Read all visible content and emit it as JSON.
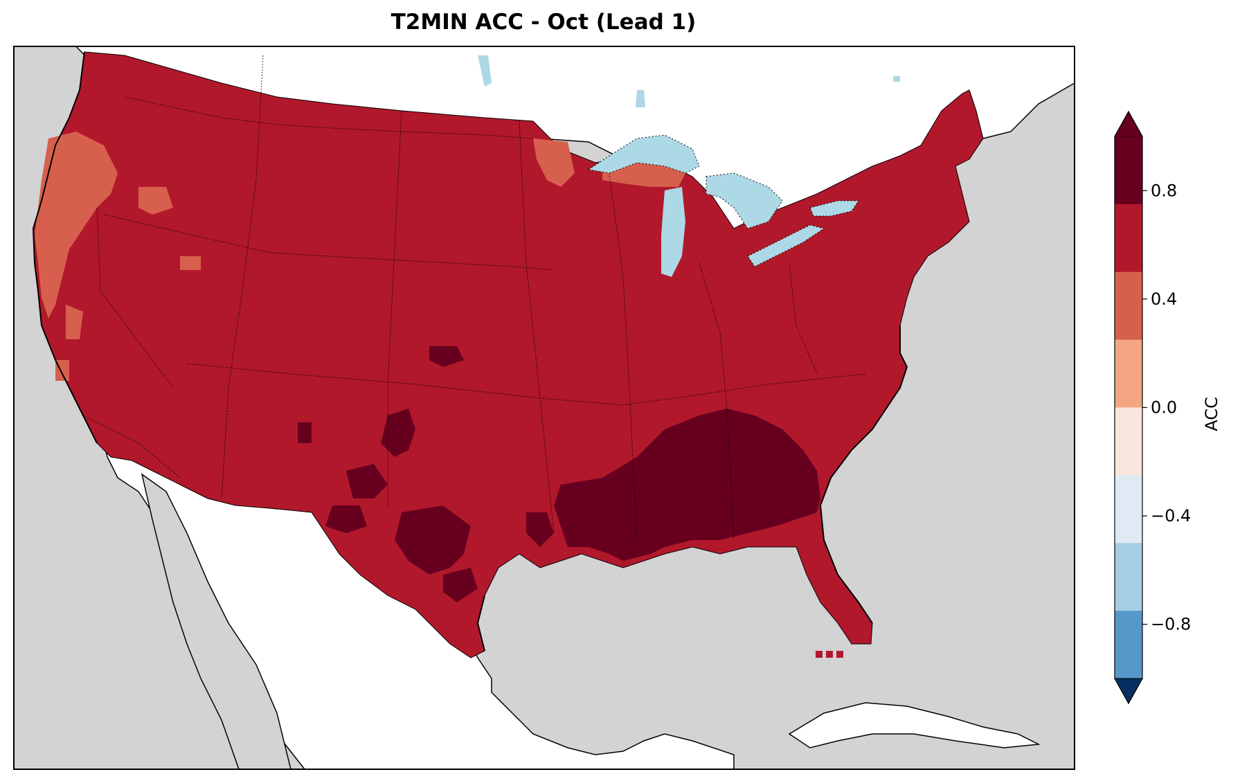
{
  "title": "T2MIN ACC - Oct (Lead 1)",
  "colorbar": {
    "label": "ACC",
    "extend": "both",
    "ticks": [
      "0.8",
      "0.4",
      "0.0",
      "−0.4",
      "−0.8"
    ],
    "levels": [
      1.0,
      0.8,
      0.6,
      0.4,
      0.2,
      0.0,
      -0.2,
      -0.4,
      -0.6,
      -0.8,
      -1.0
    ],
    "colors": [
      "#b2182b",
      "#d6604d",
      "#f4a582",
      "#fddbc7",
      "#f7f7f7",
      "#d1e5f0",
      "#92c5de",
      "#4393c3",
      "#2166ac"
    ],
    "palette": [
      "#67001f",
      "#b2182b",
      "#d6604d",
      "#f4a582",
      "#fae6dc",
      "#dfeaf4",
      "#a6cee3",
      "#5599c8",
      "#2568b0",
      "#053061"
    ]
  },
  "map": {
    "region": "Contiguous United States",
    "dominant_value": "0.6 to 0.8",
    "highest_value_region": "Southeast United States and Gulf Coast (above 0.8)",
    "moderate_value_region": "Pacific Northwest and northern California coast, western Great Lakes (0.4 to 0.6)",
    "colors": {
      "ocean": "#d3d3d3",
      "land": "#ffffff",
      "lakes": "#add8e6",
      "dominant": "#b2182b",
      "high": "#67001f",
      "moderate": "#d6604d"
    }
  }
}
